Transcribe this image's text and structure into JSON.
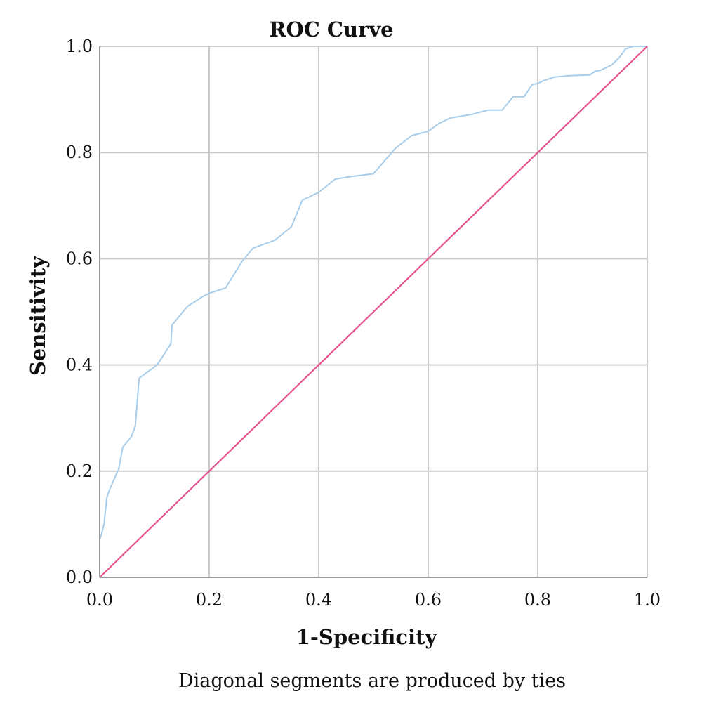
{
  "chart_data": {
    "type": "line",
    "title": "ROC Curve",
    "xlabel": "1-Specificity",
    "ylabel": "Sensitivity",
    "xlim": [
      0,
      1
    ],
    "ylim": [
      0,
      1
    ],
    "x_ticks": [
      "0.0",
      "0.2",
      "0.4",
      "0.6",
      "0.8",
      "1.0"
    ],
    "y_ticks": [
      "0.0",
      "0.2",
      "0.4",
      "0.6",
      "0.8",
      "1.0"
    ],
    "grid": true,
    "footnote": "Diagonal segments are produced by ties",
    "series": [
      {
        "color": "#a8cdea",
        "x": [
          0,
          0,
          0.003,
          0.008,
          0.013,
          0.018,
          0.035,
          0.042,
          0.058,
          0.065,
          0.072,
          0.085,
          0.105,
          0.13,
          0.132,
          0.16,
          0.19,
          0.2,
          0.23,
          0.26,
          0.28,
          0.32,
          0.35,
          0.37,
          0.4,
          0.43,
          0.46,
          0.5,
          0.54,
          0.57,
          0.6,
          0.62,
          0.64,
          0.68,
          0.71,
          0.735,
          0.755,
          0.775,
          0.79,
          0.8,
          0.81,
          0.83,
          0.86,
          0.895,
          0.905,
          0.915,
          0.935,
          0.95,
          0.96,
          0.975,
          1.0
        ],
        "y": [
          0,
          0.07,
          0.08,
          0.1,
          0.15,
          0.165,
          0.205,
          0.245,
          0.265,
          0.285,
          0.375,
          0.385,
          0.4,
          0.44,
          0.475,
          0.51,
          0.53,
          0.535,
          0.545,
          0.595,
          0.62,
          0.635,
          0.66,
          0.71,
          0.725,
          0.75,
          0.755,
          0.76,
          0.808,
          0.832,
          0.84,
          0.855,
          0.865,
          0.872,
          0.88,
          0.88,
          0.905,
          0.905,
          0.928,
          0.93,
          0.935,
          0.942,
          0.945,
          0.946,
          0.953,
          0.955,
          0.965,
          0.98,
          0.995,
          1.0,
          1.0
        ]
      },
      {
        "color": "#e5538f",
        "x": [
          0,
          1
        ],
        "y": [
          0,
          1
        ]
      }
    ]
  }
}
